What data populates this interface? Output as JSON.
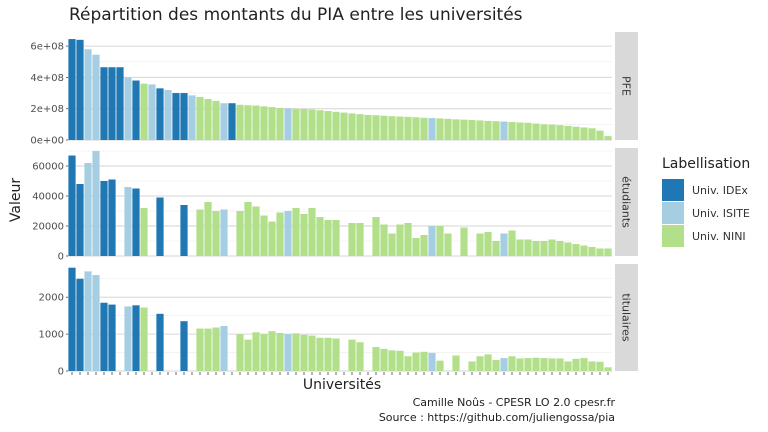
{
  "chart_data": {
    "type": "bar",
    "title": "Répartition des montants du PIA entre les universités",
    "xlabel": "Universités",
    "ylabel": "Valeur",
    "legend": {
      "title": "Labellisation",
      "placement": "right",
      "entries": [
        {
          "name": "Univ. IDEx",
          "color": "#1f78b4"
        },
        {
          "name": "Univ. ISITE",
          "color": "#a6cee3"
        },
        {
          "name": "Univ. NINI",
          "color": "#b2df8a"
        }
      ]
    },
    "categories_count": 68,
    "label_codes": [
      "D",
      "D",
      "S",
      "S",
      "D",
      "D",
      "D",
      "S",
      "D",
      "N",
      "S",
      "D",
      "S",
      "D",
      "D",
      "S",
      "N",
      "N",
      "N",
      "S",
      "D",
      "N",
      "N",
      "N",
      "N",
      "N",
      "N",
      "S",
      "N",
      "N",
      "N",
      "N",
      "N",
      "N",
      "N",
      "N",
      "N",
      "N",
      "N",
      "N",
      "N",
      "N",
      "N",
      "N",
      "N",
      "S",
      "N",
      "N",
      "N",
      "N",
      "N",
      "N",
      "N",
      "N",
      "S",
      "N",
      "N",
      "N",
      "N",
      "N",
      "N",
      "N",
      "N",
      "N",
      "N",
      "N",
      "N",
      "N"
    ],
    "facets": [
      {
        "strip": "PFE",
        "ylim": [
          0,
          690000000
        ],
        "ticks": [
          0,
          200000000,
          400000000,
          600000000
        ],
        "tick_labels": [
          "0e+00",
          "2e+08",
          "4e+08",
          "6e+08"
        ],
        "values": [
          645000000,
          640000000,
          580000000,
          545000000,
          465000000,
          465000000,
          465000000,
          400000000,
          380000000,
          360000000,
          355000000,
          330000000,
          320000000,
          300000000,
          300000000,
          285000000,
          275000000,
          262000000,
          250000000,
          235000000,
          235000000,
          225000000,
          222000000,
          220000000,
          215000000,
          210000000,
          205000000,
          203000000,
          200000000,
          198000000,
          195000000,
          190000000,
          185000000,
          180000000,
          175000000,
          170000000,
          165000000,
          160000000,
          158000000,
          155000000,
          152000000,
          150000000,
          148000000,
          145000000,
          142000000,
          140000000,
          138000000,
          135000000,
          132000000,
          130000000,
          128000000,
          125000000,
          122000000,
          120000000,
          118000000,
          115000000,
          112000000,
          110000000,
          105000000,
          100000000,
          98000000,
          95000000,
          90000000,
          85000000,
          80000000,
          75000000,
          60000000,
          25000000
        ]
      },
      {
        "strip": "étudiants",
        "ylim": [
          0,
          72000
        ],
        "ticks": [
          0,
          20000,
          40000,
          60000
        ],
        "tick_labels": [
          "0",
          "20000",
          "40000",
          "60000"
        ],
        "values": [
          67000,
          48000,
          62000,
          70000,
          50000,
          51000,
          null,
          46000,
          45000,
          32000,
          null,
          39000,
          null,
          null,
          34000,
          null,
          31000,
          36000,
          30000,
          31000,
          null,
          30000,
          36000,
          33000,
          27000,
          23000,
          29000,
          30000,
          32000,
          28000,
          32000,
          26000,
          24000,
          24000,
          null,
          22000,
          22000,
          null,
          26000,
          21000,
          15000,
          21000,
          22000,
          12000,
          14000,
          20000,
          20000,
          15000,
          null,
          19000,
          null,
          15000,
          16000,
          10000,
          15000,
          17000,
          11000,
          11000,
          10000,
          10000,
          11000,
          10000,
          9000,
          8000,
          7000,
          6000,
          5000,
          5000
        ]
      },
      {
        "strip": "titulaires",
        "ylim": [
          0,
          2900
        ],
        "ticks": [
          0,
          1000,
          2000
        ],
        "tick_labels": [
          "0",
          "1000",
          "2000"
        ],
        "values": [
          2800,
          2500,
          2700,
          2600,
          1850,
          1800,
          null,
          1750,
          1780,
          1720,
          null,
          1550,
          null,
          null,
          1350,
          null,
          1150,
          1150,
          1180,
          1220,
          null,
          1000,
          850,
          1050,
          1000,
          1080,
          1030,
          1000,
          1020,
          980,
          960,
          900,
          900,
          880,
          null,
          850,
          780,
          null,
          650,
          600,
          560,
          550,
          400,
          500,
          520,
          490,
          280,
          null,
          420,
          null,
          260,
          400,
          450,
          300,
          350,
          400,
          340,
          350,
          360,
          350,
          340,
          340,
          260,
          330,
          350,
          260,
          250,
          100
        ]
      }
    ]
  },
  "caption": {
    "line1": "Camille Noûs - CPESR LO 2.0 cpesr.fr",
    "line2": "Source : https://github.com/juliengossa/pia"
  }
}
